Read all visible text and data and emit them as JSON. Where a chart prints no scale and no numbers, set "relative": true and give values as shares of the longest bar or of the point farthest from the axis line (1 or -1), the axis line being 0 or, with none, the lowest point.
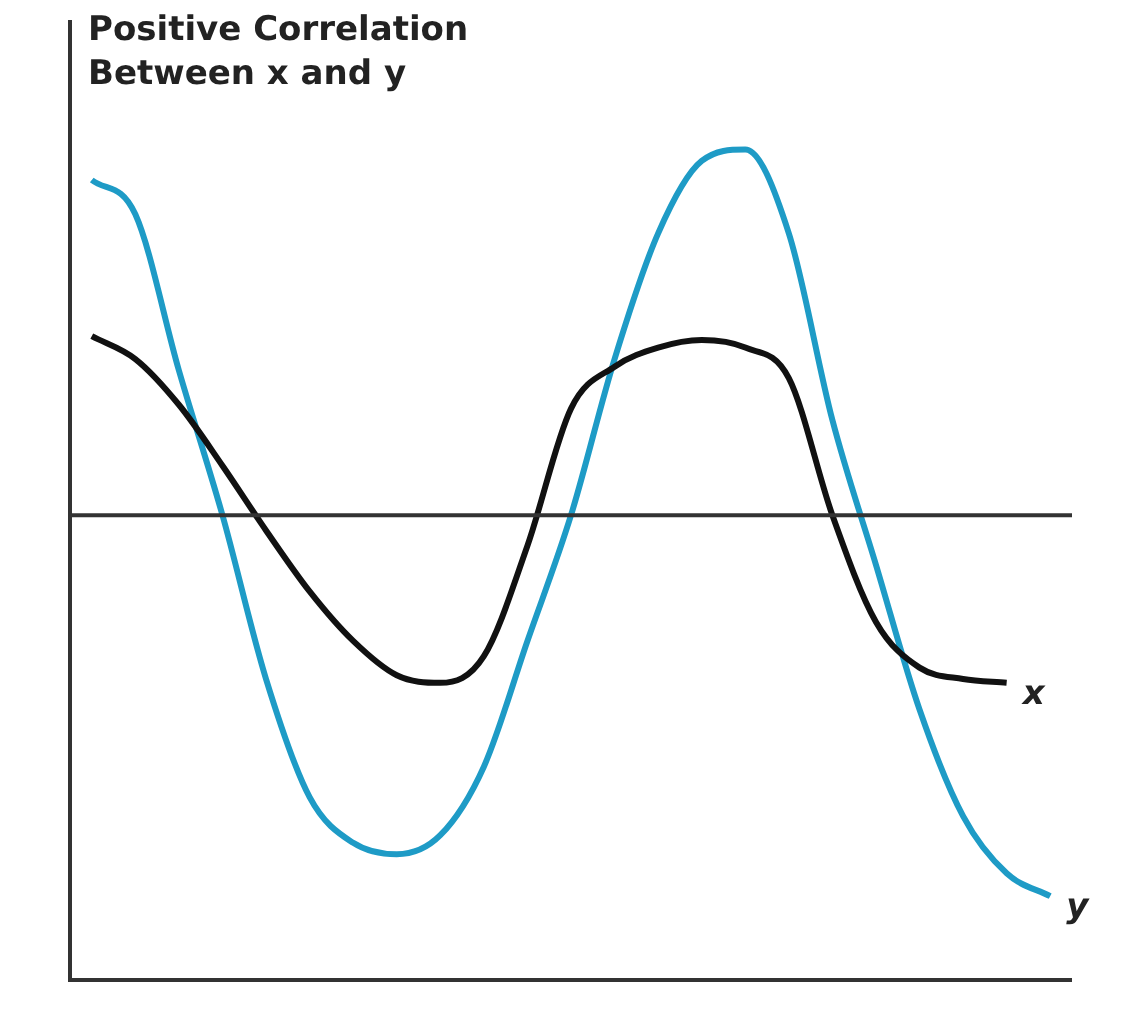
{
  "chart_data": {
    "type": "line",
    "title": "Positive Correlation Between x and y",
    "relative": true,
    "grid": false,
    "legend": false,
    "marker": "none",
    "line_style": "solid",
    "categories": [
      null,
      null,
      null,
      null,
      null,
      null,
      null,
      null,
      null,
      null,
      null,
      null,
      null,
      null,
      null,
      null,
      null,
      null,
      null,
      null,
      null,
      null,
      null
    ],
    "series": [
      {
        "name": "x",
        "color": "#111111",
        "values": [
          0.47,
          0.41,
          0.29,
          0.13,
          -0.04,
          -0.2,
          -0.33,
          -0.42,
          -0.44,
          -0.37,
          -0.08,
          0.28,
          0.39,
          0.44,
          0.46,
          0.44,
          0.36,
          0,
          -0.28,
          -0.4,
          -0.43,
          -0.44,
          null
        ]
      },
      {
        "name": "y",
        "color": "#1e9bc6",
        "values": [
          0.88,
          0.79,
          0.38,
          0,
          -0.43,
          -0.74,
          -0.86,
          -0.89,
          -0.84,
          -0.66,
          -0.33,
          0,
          0.41,
          0.74,
          0.93,
          0.96,
          0.74,
          0.25,
          -0.13,
          -0.51,
          -0.79,
          -0.94,
          -1
        ]
      }
    ]
  }
}
